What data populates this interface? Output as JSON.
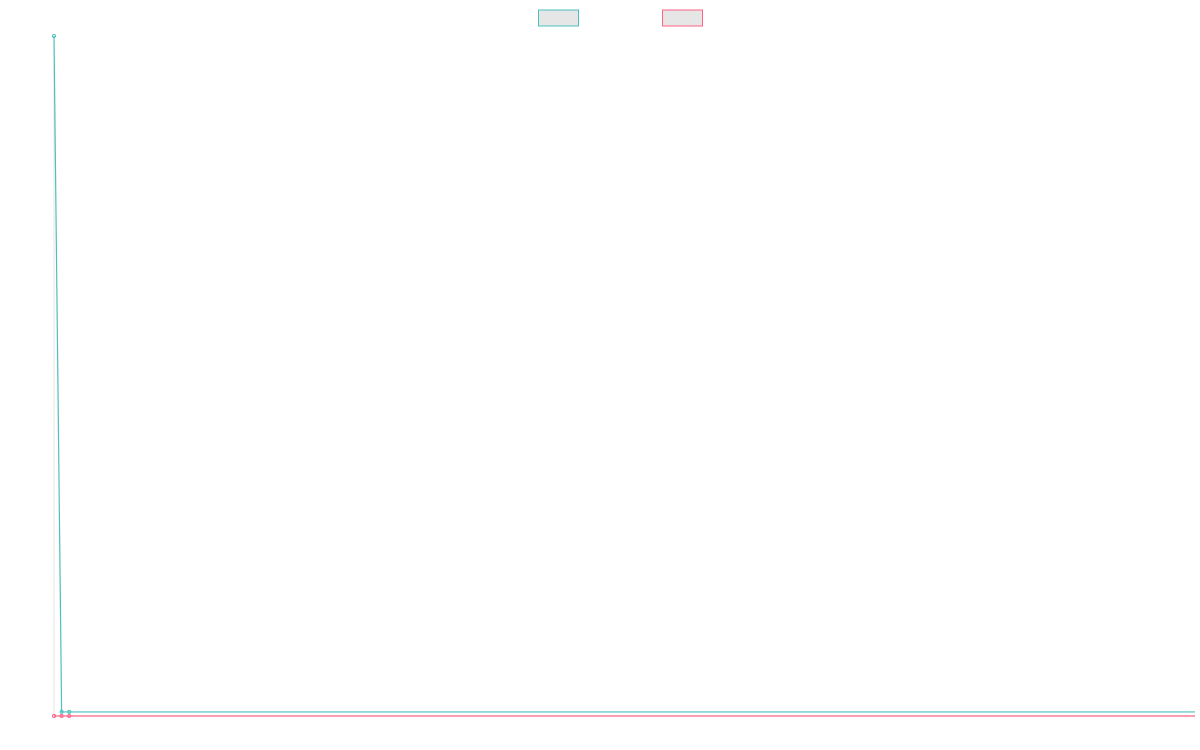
{
  "chart_data": {
    "type": "line",
    "title": "",
    "xlabel": "",
    "ylabel": "",
    "legend_position": "top-center",
    "grid": false,
    "x": [
      0,
      1,
      2,
      3,
      4,
      5,
      6,
      7,
      8,
      9,
      10,
      11,
      12,
      13,
      14,
      15,
      16,
      17,
      18,
      19,
      20,
      21,
      22,
      23,
      24,
      25,
      26,
      27,
      28,
      29,
      30,
      31,
      32,
      33,
      34,
      35,
      36,
      37,
      38,
      39,
      40,
      41,
      42,
      43,
      44,
      45,
      46,
      47,
      48,
      49,
      50,
      51,
      52,
      53,
      54,
      55,
      56,
      57,
      58,
      59,
      60,
      61,
      62,
      63,
      64,
      65,
      66,
      67,
      68,
      69,
      70,
      71,
      72,
      73,
      74,
      75,
      76,
      77,
      78,
      79,
      80,
      81,
      82,
      83,
      84,
      85,
      86,
      87,
      88,
      89,
      90,
      91,
      92,
      93,
      94,
      95,
      96,
      97,
      98,
      99,
      100,
      101,
      102,
      103,
      104,
      105,
      106,
      107,
      108,
      109,
      110,
      111,
      112,
      113,
      114,
      115,
      116,
      117,
      118,
      119,
      120,
      121,
      122,
      123,
      124,
      125,
      126,
      127,
      128,
      129,
      130,
      131,
      132,
      133,
      134,
      135,
      136,
      137,
      138,
      139,
      140,
      141,
      142,
      143,
      144,
      145,
      146,
      147,
      148,
      149,
      150
    ],
    "xlim": [
      0,
      150
    ],
    "ylim": [
      0,
      100
    ],
    "series": [
      {
        "color": "#4bc0c0",
        "values": [
          100,
          0.6,
          0.6,
          0.6,
          0.6,
          0.6,
          0.6,
          0.6,
          0.6,
          0.6,
          0.6,
          0.6,
          0.6,
          0.6,
          0.6,
          0.6,
          0.6,
          0.6,
          0.6,
          0.6,
          0.6,
          0.6,
          0.6,
          0.6,
          0.6,
          0.6,
          0.6,
          0.6,
          0.6,
          0.6,
          0.6,
          0.6,
          0.6,
          0.6,
          0.6,
          0.6,
          0.6,
          0.6,
          0.6,
          0.6,
          0.6,
          0.6,
          0.6,
          0.6,
          0.6,
          0.6,
          0.6,
          0.6,
          0.6,
          0.6,
          0.6,
          0.6,
          0.6,
          0.6,
          0.6,
          0.6,
          0.6,
          0.6,
          0.6,
          0.6,
          0.6,
          0.6,
          0.6,
          0.6,
          0.6,
          0.6,
          0.6,
          0.6,
          0.6,
          0.6,
          0.6,
          0.6,
          0.6,
          0.6,
          0.6,
          0.6,
          0.6,
          0.6,
          0.6,
          0.6,
          0.6,
          0.6,
          0.6,
          0.6,
          0.6,
          0.6,
          0.6,
          0.6,
          0.6,
          0.6,
          0.6,
          0.6,
          0.6,
          0.6,
          0.6,
          0.6,
          0.6,
          0.6,
          0.6,
          0.6,
          0.6,
          0.6,
          0.6,
          0.6,
          0.6,
          0.6,
          0.6,
          0.6,
          0.6,
          0.6,
          0.6,
          0.6,
          0.6,
          0.6,
          0.6,
          0.6,
          0.6,
          0.6,
          0.6,
          0.6,
          0.6,
          0.6,
          0.6,
          0.6,
          0.6,
          0.6,
          0.6,
          0.6,
          0.6,
          0.6,
          0.6,
          0.6,
          0.6,
          0.6,
          0.6,
          0.6,
          0.6,
          0.6,
          0.6,
          0.6,
          0.6,
          0.6,
          0.6,
          0.6,
          0.6,
          0.6,
          0.6,
          0.6,
          0.6,
          0.6,
          0.6
        ]
      },
      {
        "color": "#ff6384",
        "values": [
          0,
          0,
          0,
          0,
          0,
          0,
          0,
          0,
          0,
          0,
          0,
          0,
          0,
          0,
          0,
          0,
          0,
          0,
          0,
          0,
          0,
          0,
          0,
          0,
          0,
          0,
          0,
          0,
          0,
          0,
          0,
          0,
          0,
          0,
          0,
          0,
          0,
          0,
          0,
          0,
          0,
          0,
          0,
          0,
          0,
          0,
          0,
          0,
          0,
          0,
          0,
          0,
          0,
          0,
          0,
          0,
          0,
          0,
          0,
          0,
          0,
          0,
          0,
          0,
          0,
          0,
          0,
          0,
          0,
          0,
          0,
          0,
          0,
          0,
          0,
          0,
          0,
          0,
          0,
          0,
          0,
          0,
          0,
          0,
          0,
          0,
          0,
          0,
          0,
          0,
          0,
          0,
          0,
          0,
          0,
          0,
          0,
          0,
          0,
          0,
          0,
          0,
          0,
          0,
          0,
          0,
          0,
          0,
          0,
          0,
          0,
          0,
          0,
          0,
          0,
          0,
          0,
          0,
          0,
          0,
          0,
          0,
          0,
          0,
          0,
          0,
          0,
          0,
          0,
          0,
          0,
          0,
          0,
          0,
          0,
          0,
          0,
          0,
          0,
          0,
          0,
          0,
          0,
          0,
          0,
          0,
          0,
          0,
          0,
          0,
          0
        ]
      }
    ]
  }
}
